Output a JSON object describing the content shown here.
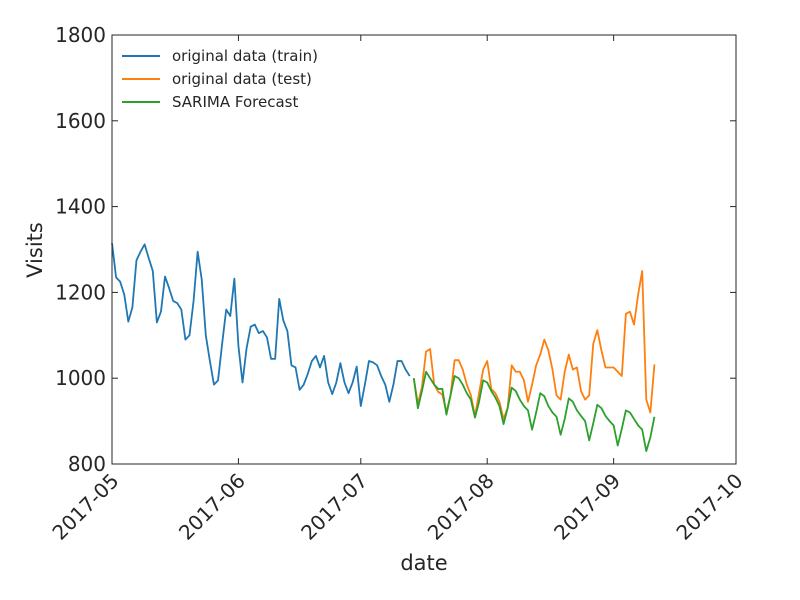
{
  "chart_data": {
    "type": "line",
    "xlabel": "date",
    "ylabel": "Visits",
    "xlim": [
      17287,
      17440
    ],
    "xticks": [
      {
        "value": 17287,
        "label": "2017-05"
      },
      {
        "value": 17318,
        "label": "2017-06"
      },
      {
        "value": 17348,
        "label": "2017-07"
      },
      {
        "value": 17379,
        "label": "2017-08"
      },
      {
        "value": 17410,
        "label": "2017-09"
      },
      {
        "value": 17440,
        "label": "2017-10"
      }
    ],
    "ylim": [
      800,
      1800
    ],
    "yticks": [
      800,
      1000,
      1200,
      1400,
      1600,
      1800
    ],
    "legend": "upper left",
    "series": [
      {
        "name": "original data (train)",
        "color": "#1f77b4",
        "x": [
          17287,
          17288,
          17289,
          17290,
          17291,
          17292,
          17293,
          17294,
          17295,
          17296,
          17297,
          17298,
          17299,
          17300,
          17301,
          17302,
          17303,
          17304,
          17305,
          17306,
          17307,
          17308,
          17309,
          17310,
          17311,
          17312,
          17313,
          17314,
          17315,
          17316,
          17317,
          17318,
          17319,
          17320,
          17321,
          17322,
          17323,
          17324,
          17325,
          17326,
          17327,
          17328,
          17329,
          17330,
          17331,
          17332,
          17333,
          17334,
          17335,
          17336,
          17337,
          17338,
          17339,
          17340,
          17341,
          17342,
          17343,
          17344,
          17345,
          17346,
          17347,
          17348,
          17349,
          17350,
          17351,
          17352,
          17353,
          17354,
          17355,
          17356,
          17357,
          17358,
          17359,
          17360
        ],
        "values": [
          1315,
          1235,
          1225,
          1195,
          1132,
          1165,
          1275,
          1295,
          1312,
          1280,
          1250,
          1130,
          1155,
          1237,
          1210,
          1180,
          1175,
          1160,
          1090,
          1100,
          1180,
          1295,
          1230,
          1100,
          1040,
          985,
          995,
          1080,
          1160,
          1145,
          1232,
          1075,
          990,
          1070,
          1120,
          1125,
          1105,
          1110,
          1095,
          1045,
          1045,
          1185,
          1135,
          1110,
          1030,
          1025,
          973,
          985,
          1010,
          1040,
          1052,
          1025,
          1052,
          990,
          963,
          990,
          1035,
          990,
          965,
          990,
          1027,
          935,
          985,
          1040,
          1037,
          1030,
          1005,
          985,
          945,
          985,
          1040,
          1040,
          1020,
          1005
        ]
      },
      {
        "name": "original data (test)",
        "color": "#ff7f0e",
        "x": [
          17361,
          17362,
          17363,
          17364,
          17365,
          17366,
          17367,
          17368,
          17369,
          17370,
          17371,
          17372,
          17373,
          17374,
          17375,
          17376,
          17377,
          17378,
          17379,
          17380,
          17381,
          17382,
          17383,
          17384,
          17385,
          17386,
          17387,
          17388,
          17389,
          17390,
          17391,
          17392,
          17393,
          17394,
          17395,
          17396,
          17397,
          17398,
          17399,
          17400,
          17401,
          17402,
          17403,
          17404,
          17405,
          17406,
          17407,
          17408,
          17409,
          17410,
          17411,
          17412,
          17413,
          17414,
          17415,
          17416,
          17417,
          17418,
          17419,
          17420
        ],
        "values": [
          1000,
          940,
          980,
          1062,
          1068,
          985,
          968,
          962,
          920,
          960,
          1042,
          1042,
          1020,
          985,
          960,
          912,
          965,
          1020,
          1040,
          975,
          965,
          945,
          905,
          930,
          1030,
          1015,
          1015,
          995,
          945,
          985,
          1030,
          1055,
          1090,
          1065,
          1020,
          960,
          950,
          1015,
          1055,
          1020,
          1025,
          970,
          950,
          960,
          1080,
          1112,
          1065,
          1025,
          1025,
          1025,
          1015,
          1005,
          1150,
          1155,
          1125,
          1195,
          1250,
          950,
          920,
          1032
        ]
      },
      {
        "name": "SARIMA Forecast",
        "color": "#2ca02c",
        "x": [
          17361,
          17362,
          17363,
          17364,
          17365,
          17366,
          17367,
          17368,
          17369,
          17370,
          17371,
          17372,
          17373,
          17374,
          17375,
          17376,
          17377,
          17378,
          17379,
          17380,
          17381,
          17382,
          17383,
          17384,
          17385,
          17386,
          17387,
          17388,
          17389,
          17390,
          17391,
          17392,
          17393,
          17394,
          17395,
          17396,
          17397,
          17398,
          17399,
          17400,
          17401,
          17402,
          17403,
          17404,
          17405,
          17406,
          17407,
          17408,
          17409,
          17410,
          17411,
          17412,
          17413,
          17414,
          17415,
          17416,
          17417,
          17418,
          17419,
          17420
        ],
        "values": [
          1000,
          930,
          970,
          1015,
          1000,
          985,
          975,
          975,
          915,
          960,
          1005,
          1000,
          985,
          965,
          950,
          908,
          945,
          995,
          990,
          970,
          955,
          935,
          893,
          930,
          978,
          970,
          950,
          935,
          925,
          880,
          920,
          965,
          958,
          935,
          920,
          910,
          868,
          905,
          953,
          945,
          925,
          912,
          900,
          855,
          895,
          938,
          930,
          912,
          900,
          890,
          843,
          882,
          925,
          920,
          905,
          890,
          880,
          830,
          862,
          910
        ]
      }
    ]
  }
}
